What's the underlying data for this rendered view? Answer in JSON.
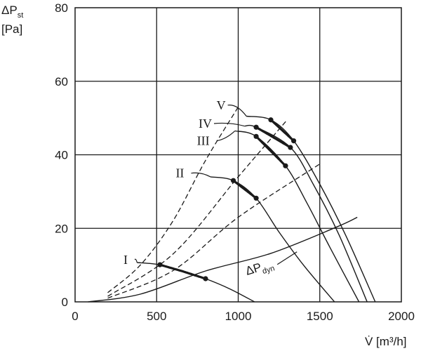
{
  "chart_data": {
    "type": "line",
    "title": "",
    "ylabel_line1": "ΔP",
    "ylabel_sub": "st",
    "ylabel_line2": "[Pa]",
    "xlabel": "V̇ [m³/h]",
    "xlim": [
      0,
      2000
    ],
    "ylim": [
      0,
      80
    ],
    "xticks": [
      0,
      500,
      1000,
      1500,
      2000
    ],
    "yticks": [
      0,
      20,
      40,
      60,
      80
    ],
    "grid": true,
    "fan_curves": [
      {
        "name": "I",
        "x": [
          380,
          520,
          660,
          800,
          950,
          1100
        ],
        "y": [
          10.7,
          10.1,
          8.3,
          6.3,
          3.5,
          0
        ],
        "operating_range": [
          520,
          800
        ]
      },
      {
        "name": "II",
        "x": [
          830,
          970,
          1110,
          1250,
          1400,
          1590
        ],
        "y": [
          34.0,
          33.0,
          28.2,
          19.0,
          10.0,
          0
        ],
        "operating_range": [
          970,
          1110
        ]
      },
      {
        "name": "III",
        "x": [
          980,
          1110,
          1290,
          1420,
          1560,
          1740
        ],
        "y": [
          46.5,
          45.0,
          37.0,
          27.0,
          15.0,
          0
        ],
        "operating_range": [
          1110,
          1290
        ]
      },
      {
        "name": "IV",
        "x": [
          1040,
          1110,
          1320,
          1460,
          1620,
          1790
        ],
        "y": [
          47.8,
          47.5,
          42.0,
          32.0,
          18.0,
          0
        ],
        "operating_range": [
          1110,
          1320
        ]
      },
      {
        "name": "V",
        "x": [
          1050,
          1200,
          1340,
          1500,
          1660,
          1840
        ],
        "y": [
          50.5,
          49.5,
          43.8,
          32.0,
          18.0,
          0
        ],
        "operating_range": [
          1200,
          1340
        ]
      }
    ],
    "dynamic_pressure": {
      "name": "ΔPdyn",
      "label_main": "ΔP",
      "label_sub": "dyn",
      "x": [
        80,
        400,
        800,
        1200,
        1600,
        1730
      ],
      "y": [
        0,
        2.1,
        8.4,
        13.2,
        20.3,
        23.0
      ]
    },
    "system_curves_dashed": [
      {
        "x": [
          200,
          400,
          600,
          800,
          1000
        ],
        "y": [
          2.5,
          10,
          22,
          38.5,
          53
        ]
      },
      {
        "x": [
          200,
          600,
          1000,
          1300
        ],
        "y": [
          1.5,
          13,
          34,
          49.5
        ]
      },
      {
        "x": [
          200,
          600,
          1000,
          1500
        ],
        "y": [
          1.0,
          8.5,
          23,
          37.5
        ]
      }
    ],
    "series_labels": [
      {
        "text": "I",
        "lx": 340,
        "ly": 11.5
      },
      {
        "text": "II",
        "lx": 660,
        "ly": 35.0
      },
      {
        "text": "III",
        "lx": 790,
        "ly": 43.8
      },
      {
        "text": "IV",
        "lx": 800,
        "ly": 48.5
      },
      {
        "text": "V",
        "lx": 910,
        "ly": 53.5
      }
    ]
  }
}
